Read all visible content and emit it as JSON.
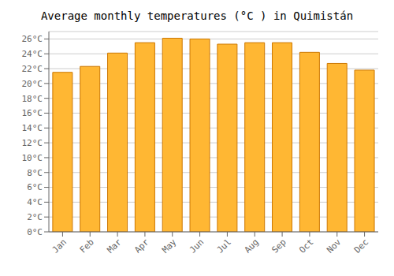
{
  "chart_data": {
    "type": "bar",
    "title": "Average monthly temperatures (°C ) in Quimistán",
    "categories": [
      "Jan",
      "Feb",
      "Mar",
      "Apr",
      "May",
      "Jun",
      "Jul",
      "Aug",
      "Sep",
      "Oct",
      "Nov",
      "Dec"
    ],
    "values": [
      21.5,
      22.3,
      24.1,
      25.5,
      26.1,
      26.0,
      25.3,
      25.5,
      25.5,
      24.2,
      22.7,
      21.8
    ],
    "color": "#FFB733",
    "ylim": [
      0,
      27
    ],
    "yticks": [
      {
        "value": 0,
        "label": "0°C"
      },
      {
        "value": 2,
        "label": "2°C"
      },
      {
        "value": 4,
        "label": "4°C"
      },
      {
        "value": 6,
        "label": "6°C"
      },
      {
        "value": 8,
        "label": "8°C"
      },
      {
        "value": 10,
        "label": "10°C"
      },
      {
        "value": 12,
        "label": "12°C"
      },
      {
        "value": 14,
        "label": "14°C"
      },
      {
        "value": 16,
        "label": "16°C"
      },
      {
        "value": 18,
        "label": "18°C"
      },
      {
        "value": 20,
        "label": "20°C"
      },
      {
        "value": 22,
        "label": "22°C"
      },
      {
        "value": 24,
        "label": "24°C"
      },
      {
        "value": 26,
        "label": "26°C"
      }
    ],
    "grid": true
  }
}
